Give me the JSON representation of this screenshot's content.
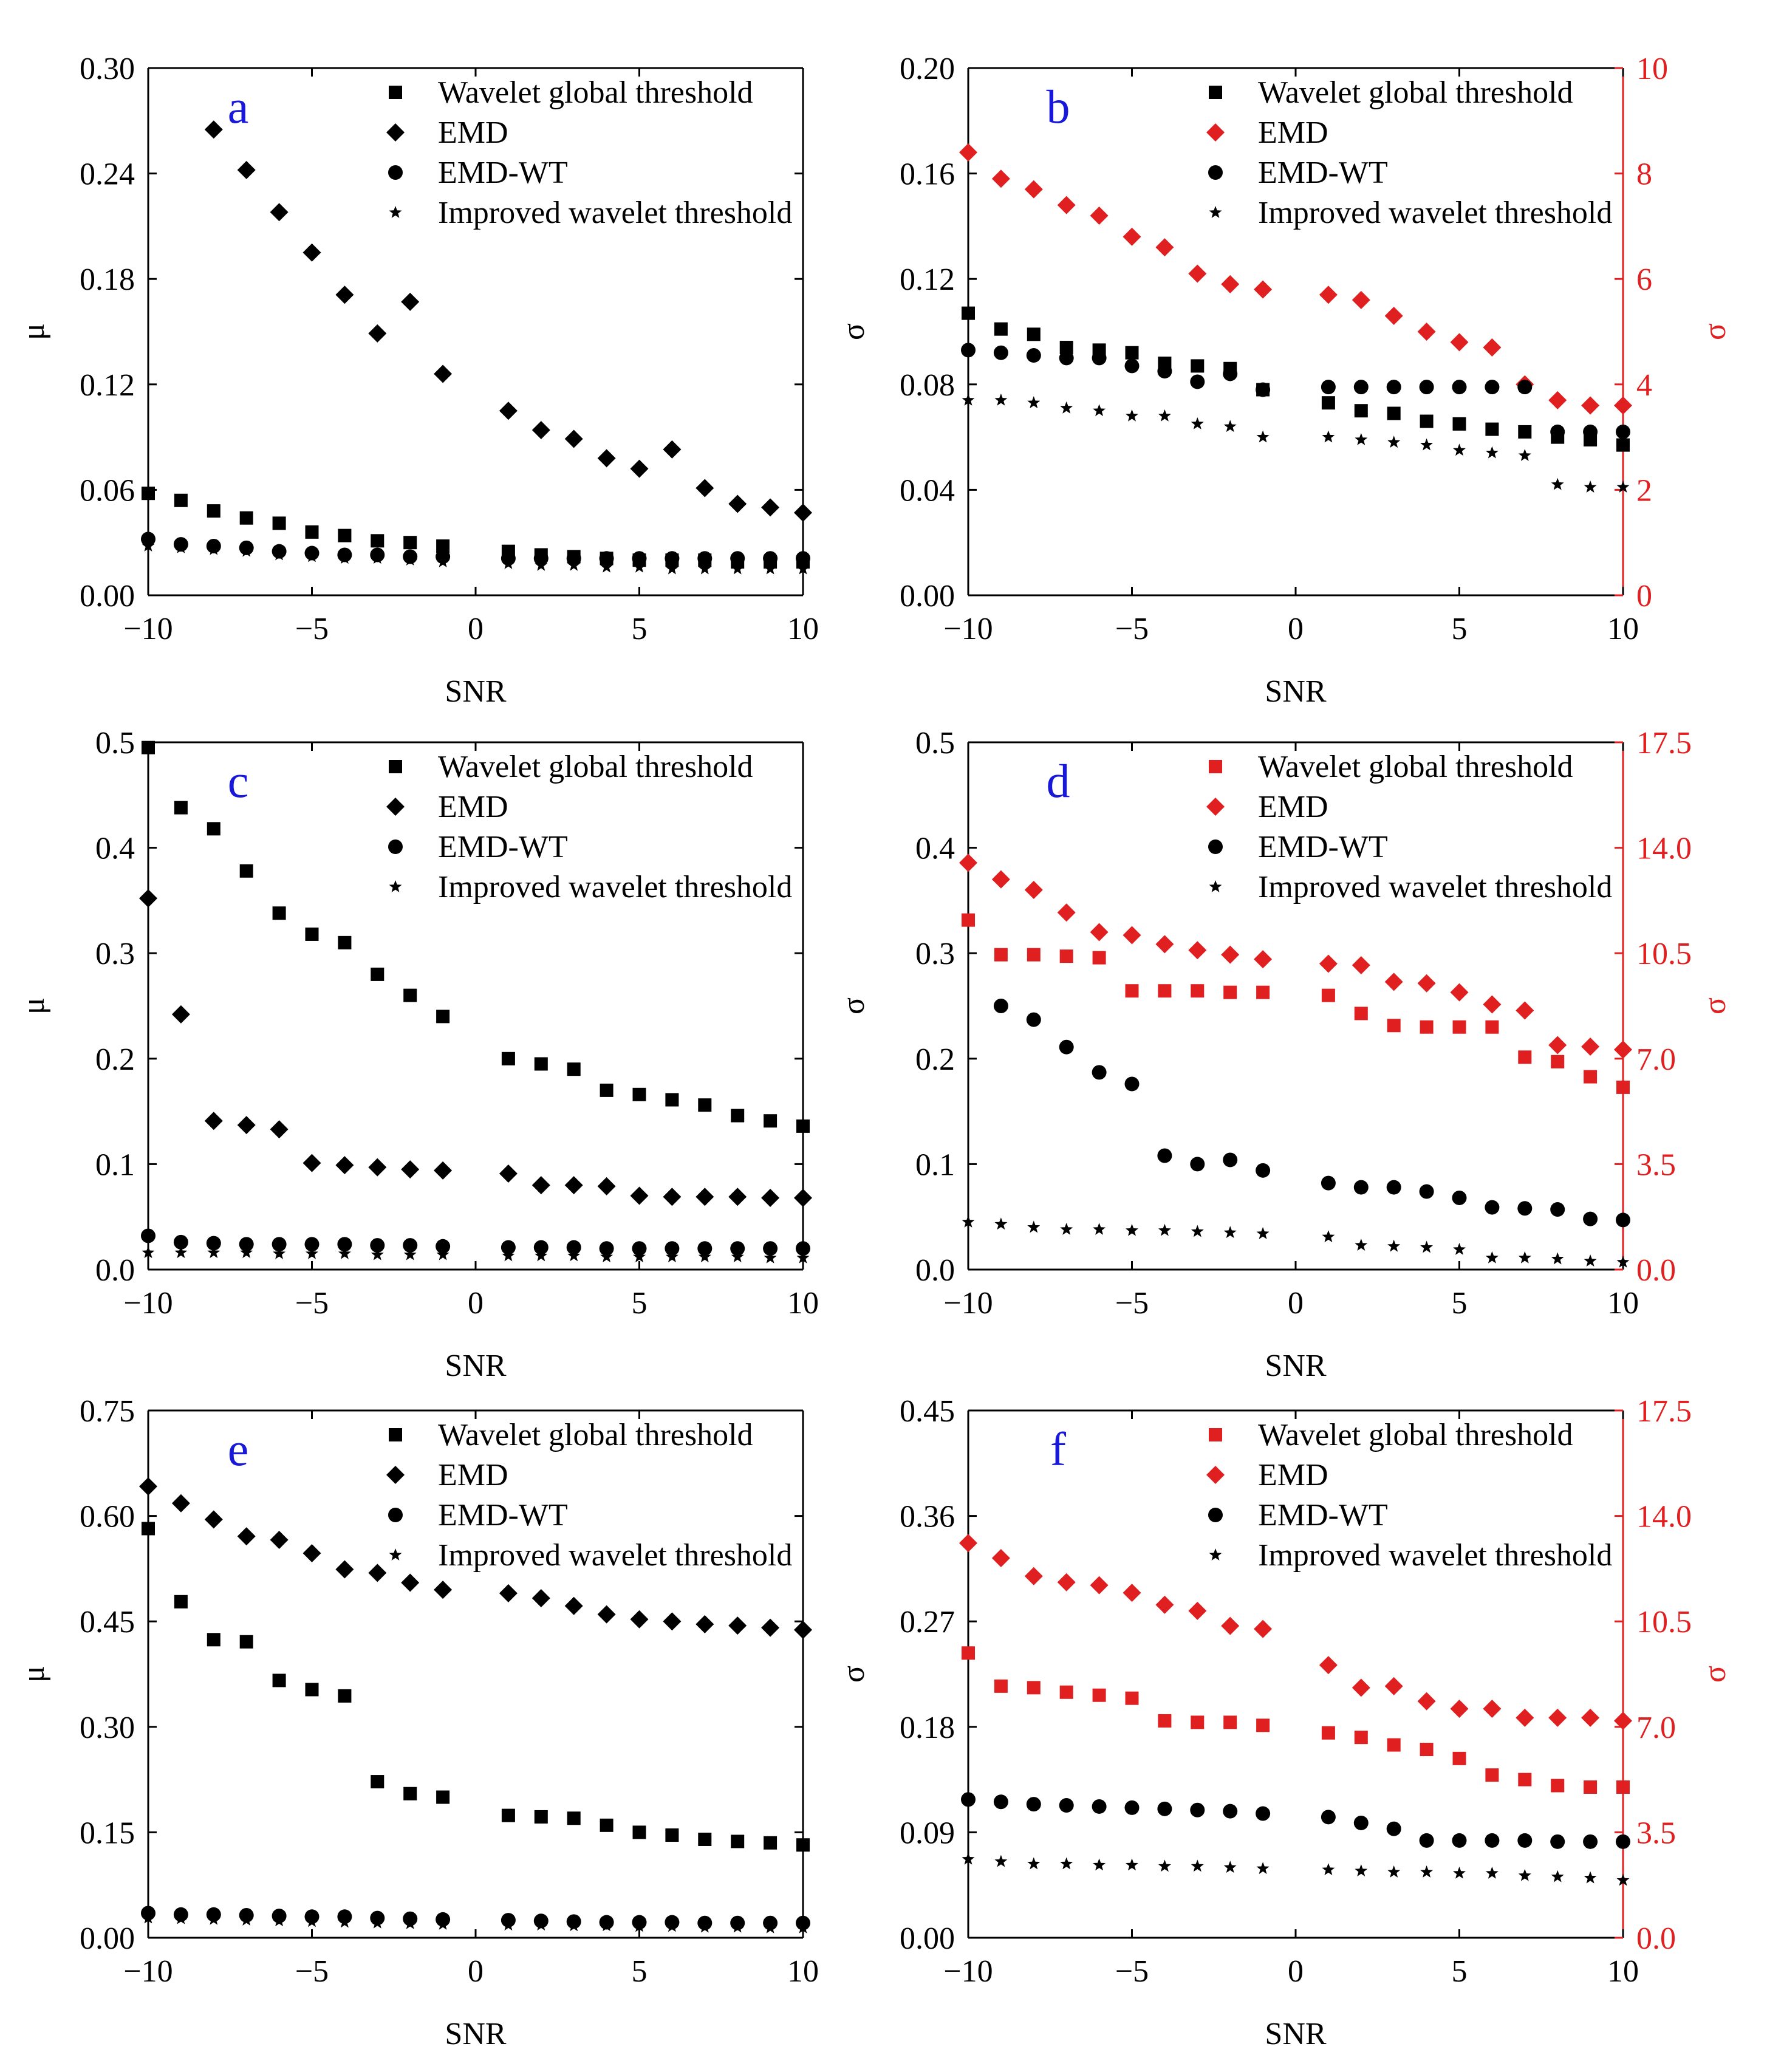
{
  "figure": {
    "panels": [
      "a",
      "b",
      "c",
      "d",
      "e",
      "f"
    ]
  },
  "chart_data": [
    {
      "panel": "a",
      "type": "scatter",
      "xlabel": "SNR",
      "ylabel": "μ",
      "xlim": [
        -10,
        10
      ],
      "ylim": [
        0,
        0.3
      ],
      "xticks": [
        "−10",
        "−5",
        "0",
        "5",
        "10"
      ],
      "xtick_values": [
        -10,
        -5,
        0,
        5,
        10
      ],
      "yticks": [
        "0.00",
        "0.06",
        "0.12",
        "0.18",
        "0.24",
        "0.30"
      ],
      "ytick_values": [
        0,
        0.06,
        0.12,
        0.18,
        0.24,
        0.3
      ],
      "legend_position": "top-right",
      "x": [
        -10,
        -9,
        -8,
        -7,
        -6,
        -5,
        -4,
        -3,
        -2,
        -1,
        1,
        2,
        3,
        4,
        5,
        6,
        7,
        8,
        9,
        10
      ],
      "series": [
        {
          "name": "Wavelet global threshold",
          "marker": "square",
          "color": "#000000",
          "axis": "left",
          "values": [
            0.058,
            0.054,
            0.048,
            0.044,
            0.041,
            0.036,
            0.034,
            0.031,
            0.03,
            0.028,
            0.025,
            0.023,
            0.022,
            0.021,
            0.02,
            0.02,
            0.02,
            0.019,
            0.019,
            0.019
          ]
        },
        {
          "name": "EMD",
          "marker": "diamond",
          "color": "#000000",
          "axis": "left",
          "values": [
            null,
            null,
            0.265,
            0.242,
            0.218,
            0.195,
            0.171,
            0.149,
            0.167,
            0.126,
            0.105,
            0.094,
            0.089,
            0.078,
            0.072,
            0.083,
            0.061,
            0.052,
            0.05,
            0.047
          ]
        },
        {
          "name": "EMD-WT",
          "marker": "circle",
          "color": "#000000",
          "axis": "left",
          "values": [
            0.032,
            0.029,
            0.028,
            0.027,
            0.025,
            0.024,
            0.023,
            0.023,
            0.022,
            0.022,
            0.021,
            0.021,
            0.021,
            0.021,
            0.021,
            0.021,
            0.021,
            0.021,
            0.021,
            0.021
          ]
        },
        {
          "name": "Improved wavelet threshold",
          "marker": "star",
          "color": "#000000",
          "axis": "left",
          "values": [
            0.028,
            0.027,
            0.026,
            0.025,
            0.023,
            0.022,
            0.021,
            0.021,
            0.02,
            0.019,
            0.018,
            0.017,
            0.017,
            0.016,
            0.016,
            0.015,
            0.015,
            0.015,
            0.015,
            0.015
          ]
        }
      ]
    },
    {
      "panel": "b",
      "type": "scatter",
      "xlabel": "SNR",
      "ylabel": "σ",
      "ylabel_right": "σ",
      "xlim": [
        -10,
        10
      ],
      "ylim": [
        0,
        0.2
      ],
      "ylim_right": [
        0,
        10
      ],
      "xticks": [
        "−10",
        "−5",
        "0",
        "5",
        "10"
      ],
      "xtick_values": [
        -10,
        -5,
        0,
        5,
        10
      ],
      "yticks": [
        "0.00",
        "0.04",
        "0.08",
        "0.12",
        "0.16",
        "0.20"
      ],
      "ytick_values": [
        0,
        0.04,
        0.08,
        0.12,
        0.16,
        0.2
      ],
      "yticks_right": [
        "0",
        "2",
        "4",
        "6",
        "8",
        "10"
      ],
      "ytick_values_right": [
        0,
        2,
        4,
        6,
        8,
        10
      ],
      "legend_position": "top-right",
      "x": [
        -10,
        -9,
        -8,
        -7,
        -6,
        -5,
        -4,
        -3,
        -2,
        -1,
        1,
        2,
        3,
        4,
        5,
        6,
        7,
        8,
        9,
        10
      ],
      "series": [
        {
          "name": "Wavelet global threshold",
          "marker": "square",
          "color": "#000000",
          "axis": "left",
          "values": [
            0.107,
            0.101,
            0.099,
            0.094,
            0.093,
            0.092,
            0.088,
            0.087,
            0.086,
            0.078,
            0.073,
            0.07,
            0.069,
            0.066,
            0.065,
            0.063,
            0.062,
            0.06,
            0.059,
            0.057
          ]
        },
        {
          "name": "EMD",
          "marker": "diamond",
          "color": "#e02020",
          "axis": "right",
          "values": [
            8.4,
            7.9,
            7.7,
            7.4,
            7.2,
            6.8,
            6.6,
            6.1,
            5.9,
            5.8,
            5.7,
            5.6,
            5.3,
            5.0,
            4.8,
            4.7,
            4.0,
            3.7,
            3.6,
            3.6
          ]
        },
        {
          "name": "EMD-WT",
          "marker": "circle",
          "color": "#000000",
          "axis": "left",
          "values": [
            0.093,
            0.092,
            0.091,
            0.09,
            0.09,
            0.087,
            0.085,
            0.081,
            0.084,
            0.078,
            0.079,
            0.079,
            0.079,
            0.079,
            0.079,
            0.079,
            0.079,
            0.062,
            0.062,
            0.062
          ]
        },
        {
          "name": "Improved wavelet threshold",
          "marker": "star",
          "color": "#000000",
          "axis": "left",
          "values": [
            0.074,
            0.074,
            0.073,
            0.071,
            0.07,
            0.068,
            0.068,
            0.065,
            0.064,
            0.06,
            0.06,
            0.059,
            0.058,
            0.057,
            0.055,
            0.054,
            0.053,
            0.042,
            0.041,
            0.041
          ]
        }
      ]
    },
    {
      "panel": "c",
      "type": "scatter",
      "xlabel": "SNR",
      "ylabel": "μ",
      "xlim": [
        -10,
        10
      ],
      "ylim": [
        0,
        0.5
      ],
      "xticks": [
        "−10",
        "−5",
        "0",
        "5",
        "10"
      ],
      "xtick_values": [
        -10,
        -5,
        0,
        5,
        10
      ],
      "yticks": [
        "0.0",
        "0.1",
        "0.2",
        "0.3",
        "0.4",
        "0.5"
      ],
      "ytick_values": [
        0,
        0.1,
        0.2,
        0.3,
        0.4,
        0.5
      ],
      "legend_position": "top-right",
      "x": [
        -10,
        -9,
        -8,
        -7,
        -6,
        -5,
        -4,
        -3,
        -2,
        -1,
        1,
        2,
        3,
        4,
        5,
        6,
        7,
        8,
        9,
        10
      ],
      "series": [
        {
          "name": "Wavelet global threshold",
          "marker": "square",
          "color": "#000000",
          "axis": "left",
          "values": [
            0.495,
            0.438,
            0.418,
            0.378,
            0.338,
            0.318,
            0.31,
            0.28,
            0.26,
            0.24,
            0.2,
            0.195,
            0.19,
            0.17,
            0.166,
            0.161,
            0.156,
            0.146,
            0.141,
            0.136
          ]
        },
        {
          "name": "EMD",
          "marker": "diamond",
          "color": "#000000",
          "axis": "left",
          "values": [
            0.352,
            0.242,
            0.141,
            0.137,
            0.133,
            0.101,
            0.099,
            0.097,
            0.095,
            0.094,
            0.091,
            0.08,
            0.08,
            0.079,
            0.07,
            0.069,
            0.069,
            0.069,
            0.068,
            0.068
          ]
        },
        {
          "name": "EMD-WT",
          "marker": "circle",
          "color": "#000000",
          "axis": "left",
          "values": [
            0.032,
            0.026,
            0.025,
            0.024,
            0.024,
            0.024,
            0.024,
            0.023,
            0.023,
            0.022,
            0.021,
            0.021,
            0.021,
            0.02,
            0.02,
            0.02,
            0.02,
            0.02,
            0.02,
            0.02
          ]
        },
        {
          "name": "Improved wavelet threshold",
          "marker": "star",
          "color": "#000000",
          "axis": "left",
          "values": [
            0.016,
            0.016,
            0.016,
            0.016,
            0.015,
            0.015,
            0.015,
            0.014,
            0.014,
            0.014,
            0.013,
            0.013,
            0.013,
            0.012,
            0.012,
            0.012,
            0.012,
            0.012,
            0.011,
            0.011
          ]
        }
      ]
    },
    {
      "panel": "d",
      "type": "scatter",
      "xlabel": "SNR",
      "ylabel": "σ",
      "ylabel_right": "σ",
      "xlim": [
        -10,
        10
      ],
      "ylim": [
        0,
        0.5
      ],
      "ylim_right": [
        0,
        17.5
      ],
      "xticks": [
        "−10",
        "−5",
        "0",
        "5",
        "10"
      ],
      "xtick_values": [
        -10,
        -5,
        0,
        5,
        10
      ],
      "yticks": [
        "0.0",
        "0.1",
        "0.2",
        "0.3",
        "0.4",
        "0.5"
      ],
      "ytick_values": [
        0,
        0.1,
        0.2,
        0.3,
        0.4,
        0.5
      ],
      "yticks_right": [
        "0.0",
        "3.5",
        "7.0",
        "10.5",
        "14.0",
        "17.5"
      ],
      "ytick_values_right": [
        0,
        3.5,
        7.0,
        10.5,
        14.0,
        17.5
      ],
      "legend_position": "top-right",
      "x": [
        -10,
        -9,
        -8,
        -7,
        -6,
        -5,
        -4,
        -3,
        -2,
        -1,
        1,
        2,
        3,
        4,
        5,
        6,
        7,
        8,
        9,
        10
      ],
      "series": [
        {
          "name": "Wavelet global threshold",
          "marker": "square",
          "color": "#e02020",
          "axis": "right",
          "values": [
            11.6,
            10.45,
            10.45,
            10.4,
            10.35,
            9.25,
            9.25,
            9.25,
            9.2,
            9.2,
            9.1,
            8.5,
            8.1,
            8.05,
            8.05,
            8.05,
            7.05,
            6.9,
            6.4,
            6.05
          ]
        },
        {
          "name": "EMD",
          "marker": "diamond",
          "color": "#e02020",
          "axis": "right",
          "values": [
            13.5,
            12.95,
            12.6,
            11.85,
            11.2,
            11.1,
            10.8,
            10.6,
            10.45,
            10.3,
            10.15,
            10.1,
            9.55,
            9.5,
            9.2,
            8.8,
            8.6,
            7.45,
            7.4,
            7.3
          ]
        },
        {
          "name": "EMD-WT",
          "marker": "circle",
          "color": "#000000",
          "axis": "left",
          "values": [
            null,
            0.25,
            0.237,
            0.211,
            0.187,
            0.176,
            0.108,
            0.1,
            0.104,
            0.094,
            0.082,
            0.078,
            0.078,
            0.074,
            0.068,
            0.059,
            0.058,
            0.057,
            0.048,
            0.047
          ]
        },
        {
          "name": "Improved wavelet threshold",
          "marker": "star",
          "color": "#000000",
          "axis": "left",
          "values": [
            0.045,
            0.043,
            0.04,
            0.038,
            0.038,
            0.037,
            0.037,
            0.036,
            0.035,
            0.034,
            0.031,
            0.023,
            0.022,
            0.021,
            0.019,
            0.011,
            0.011,
            0.01,
            0.008,
            0.007
          ]
        }
      ]
    },
    {
      "panel": "e",
      "type": "scatter",
      "xlabel": "SNR",
      "ylabel": "μ",
      "xlim": [
        -10,
        10
      ],
      "ylim": [
        0,
        0.75
      ],
      "xticks": [
        "−10",
        "−5",
        "0",
        "5",
        "10"
      ],
      "xtick_values": [
        -10,
        -5,
        0,
        5,
        10
      ],
      "yticks": [
        "0.00",
        "0.15",
        "0.30",
        "0.45",
        "0.60",
        "0.75"
      ],
      "ytick_values": [
        0,
        0.15,
        0.3,
        0.45,
        0.6,
        0.75
      ],
      "legend_position": "top-right",
      "x": [
        -10,
        -9,
        -8,
        -7,
        -6,
        -5,
        -4,
        -3,
        -2,
        -1,
        1,
        2,
        3,
        4,
        5,
        6,
        7,
        8,
        9,
        10
      ],
      "series": [
        {
          "name": "Wavelet global threshold",
          "marker": "square",
          "color": "#000000",
          "axis": "left",
          "values": [
            0.582,
            0.478,
            0.424,
            0.421,
            0.366,
            0.353,
            0.344,
            0.222,
            0.205,
            0.2,
            0.174,
            0.172,
            0.17,
            0.16,
            0.15,
            0.146,
            0.14,
            0.137,
            0.135,
            0.132
          ]
        },
        {
          "name": "EMD",
          "marker": "diamond",
          "color": "#000000",
          "axis": "left",
          "values": [
            0.642,
            0.618,
            0.595,
            0.571,
            0.566,
            0.547,
            0.524,
            0.519,
            0.505,
            0.495,
            0.49,
            0.483,
            0.472,
            0.46,
            0.453,
            0.45,
            0.446,
            0.444,
            0.441,
            0.438
          ]
        },
        {
          "name": "EMD-WT",
          "marker": "circle",
          "color": "#000000",
          "axis": "left",
          "values": [
            0.035,
            0.033,
            0.033,
            0.032,
            0.031,
            0.03,
            0.03,
            0.028,
            0.027,
            0.026,
            0.025,
            0.024,
            0.023,
            0.022,
            0.022,
            0.022,
            0.021,
            0.021,
            0.021,
            0.021
          ]
        },
        {
          "name": "Improved wavelet threshold",
          "marker": "star",
          "color": "#000000",
          "axis": "left",
          "values": [
            0.028,
            0.027,
            0.026,
            0.025,
            0.024,
            0.023,
            0.022,
            0.021,
            0.02,
            0.019,
            0.018,
            0.018,
            0.017,
            0.017,
            0.016,
            0.016,
            0.015,
            0.015,
            0.014,
            0.014
          ]
        }
      ]
    },
    {
      "panel": "f",
      "type": "scatter",
      "xlabel": "SNR",
      "ylabel": "σ",
      "ylabel_right": "σ",
      "xlim": [
        -10,
        10
      ],
      "ylim": [
        0,
        0.45
      ],
      "ylim_right": [
        0,
        17.5
      ],
      "xticks": [
        "−10",
        "−5",
        "0",
        "5",
        "10"
      ],
      "xtick_values": [
        -10,
        -5,
        0,
        5,
        10
      ],
      "yticks": [
        "0.00",
        "0.09",
        "0.18",
        "0.27",
        "0.36",
        "0.45"
      ],
      "ytick_values": [
        0,
        0.09,
        0.18,
        0.27,
        0.36,
        0.45
      ],
      "yticks_right": [
        "0.0",
        "3.5",
        "7.0",
        "10.5",
        "14.0",
        "17.5"
      ],
      "ytick_values_right": [
        0,
        3.5,
        7.0,
        10.5,
        14.0,
        17.5
      ],
      "legend_position": "top-right",
      "x": [
        -10,
        -9,
        -8,
        -7,
        -6,
        -5,
        -4,
        -3,
        -2,
        -1,
        1,
        2,
        3,
        4,
        5,
        6,
        7,
        8,
        9,
        10
      ],
      "series": [
        {
          "name": "Wavelet global threshold",
          "marker": "square",
          "color": "#e02020",
          "axis": "right",
          "values": [
            9.45,
            8.35,
            8.3,
            8.15,
            8.05,
            7.95,
            7.2,
            7.15,
            7.15,
            7.05,
            6.8,
            6.65,
            6.4,
            6.25,
            5.95,
            5.4,
            5.25,
            5.05,
            5.0,
            5.0
          ]
        },
        {
          "name": "EMD",
          "marker": "diamond",
          "color": "#e02020",
          "axis": "right",
          "values": [
            13.1,
            12.6,
            12.0,
            11.8,
            11.7,
            11.45,
            11.05,
            10.85,
            10.35,
            10.25,
            9.05,
            8.3,
            8.35,
            7.85,
            7.6,
            7.6,
            7.3,
            7.3,
            7.3,
            7.2
          ]
        },
        {
          "name": "EMD-WT",
          "marker": "circle",
          "color": "#000000",
          "axis": "left",
          "values": [
            0.118,
            0.116,
            0.114,
            0.113,
            0.112,
            0.111,
            0.11,
            0.109,
            0.108,
            0.106,
            0.103,
            0.098,
            0.093,
            0.083,
            0.083,
            0.083,
            0.083,
            0.082,
            0.082,
            0.082
          ]
        },
        {
          "name": "Improved wavelet threshold",
          "marker": "star",
          "color": "#000000",
          "axis": "left",
          "values": [
            0.067,
            0.065,
            0.063,
            0.063,
            0.062,
            0.062,
            0.061,
            0.061,
            0.06,
            0.059,
            0.058,
            0.057,
            0.056,
            0.056,
            0.055,
            0.055,
            0.053,
            0.052,
            0.051,
            0.049
          ]
        }
      ]
    }
  ]
}
